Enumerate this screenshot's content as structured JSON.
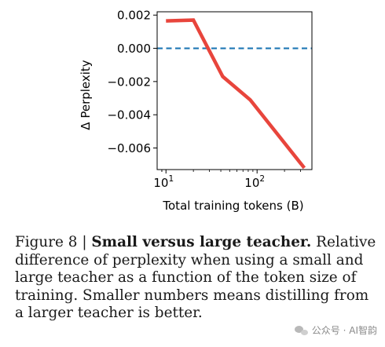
{
  "chart_data": {
    "type": "line",
    "x_scale": "log",
    "xlabel": "Total training tokens (B)",
    "ylabel": "Δ Perplexity",
    "xlim": [
      8,
      400
    ],
    "ylim": [
      -0.0073,
      0.0022
    ],
    "x_ticks": [
      {
        "value": 10,
        "base": "10",
        "exp": "1"
      },
      {
        "value": 100,
        "base": "10",
        "exp": "2"
      }
    ],
    "y_ticks": [
      {
        "value": 0.002,
        "label": "0.002"
      },
      {
        "value": 0.0,
        "label": "0.000"
      },
      {
        "value": -0.002,
        "label": "−0.002"
      },
      {
        "value": -0.004,
        "label": "−0.004"
      },
      {
        "value": -0.006,
        "label": "−0.006"
      }
    ],
    "reference_line": {
      "y": 0.0,
      "style": "dashed",
      "color": "#1f77b4"
    },
    "series": [
      {
        "color": "#e8453c",
        "x": [
          10,
          20,
          42,
          84,
          330
        ],
        "y": [
          0.00165,
          0.0017,
          -0.0017,
          -0.0031,
          -0.0072
        ]
      }
    ],
    "grid": false
  },
  "caption": {
    "prefix": "Figure 8 | ",
    "bold": "Small versus large teacher.",
    "text": " Relative difference of perplexity when using a small and large teacher as a function of the token size of training. Smaller numbers means distilling from a larger teacher is better."
  },
  "watermark": {
    "icon": "wechat-icon",
    "text": "公众号 · AI智韵"
  }
}
